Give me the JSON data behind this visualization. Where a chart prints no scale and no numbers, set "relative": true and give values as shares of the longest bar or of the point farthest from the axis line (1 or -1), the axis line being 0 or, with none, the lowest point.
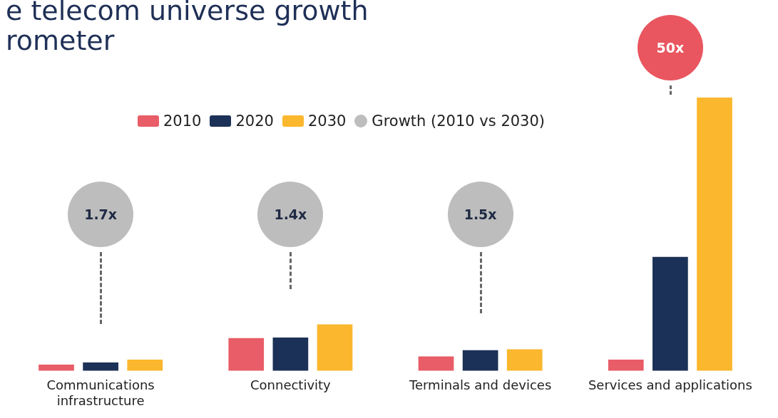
{
  "chart_data": {
    "type": "bar",
    "title": "e telecom universe growth\nrometer",
    "relative": true,
    "legend": "top",
    "categories": [
      "Communications infrastructure",
      "Connectivity",
      "Terminals and devices",
      "Services and applications"
    ],
    "series": [
      {
        "name": "2010",
        "color": "#e85d67",
        "values": [
          0.023,
          0.12,
          0.053,
          0.041
        ]
      },
      {
        "name": "2020",
        "color": "#1c3157",
        "values": [
          0.031,
          0.122,
          0.076,
          0.417
        ]
      },
      {
        "name": "2030",
        "color": "#fbb72d",
        "values": [
          0.041,
          0.17,
          0.079,
          1
        ]
      }
    ],
    "annotations": [
      "Growth (2010 vs 2030)",
      "1.7x",
      "1.4x",
      "1.5x",
      "50x"
    ]
  }
}
